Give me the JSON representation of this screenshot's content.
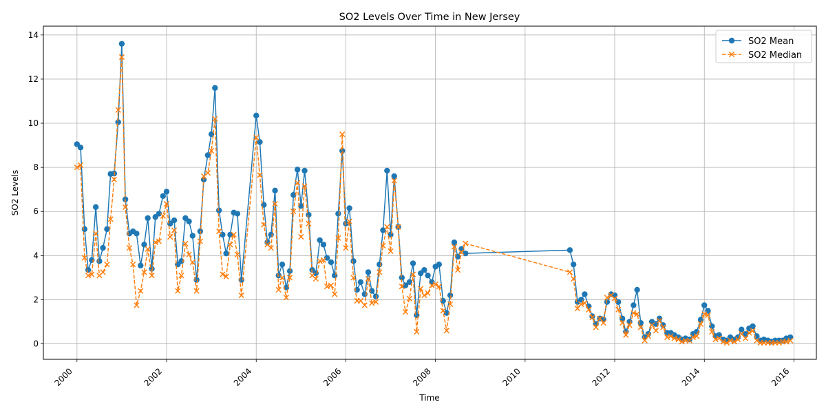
{
  "chart_data": {
    "type": "line",
    "title": "SO2 Levels Over Time in New Jersey",
    "xlabel": "Time",
    "ylabel": "SO2 Levels",
    "xlim": [
      1999.25,
      2016.5
    ],
    "ylim": [
      -0.7,
      14.4
    ],
    "xticks": [
      {
        "value": 2000,
        "label": "2000"
      },
      {
        "value": 2002,
        "label": "2002"
      },
      {
        "value": 2004,
        "label": "2004"
      },
      {
        "value": 2006,
        "label": "2006"
      },
      {
        "value": 2008,
        "label": "2008"
      },
      {
        "value": 2010,
        "label": "2010"
      },
      {
        "value": 2012,
        "label": "2012"
      },
      {
        "value": 2014,
        "label": "2014"
      },
      {
        "value": 2016,
        "label": "2016"
      }
    ],
    "yticks": [
      {
        "value": 0,
        "label": "0"
      },
      {
        "value": 2,
        "label": "2"
      },
      {
        "value": 4,
        "label": "4"
      },
      {
        "value": 6,
        "label": "6"
      },
      {
        "value": 8,
        "label": "8"
      },
      {
        "value": 10,
        "label": "10"
      },
      {
        "value": 12,
        "label": "12"
      },
      {
        "value": 14,
        "label": "14"
      }
    ],
    "grid": true,
    "legend_position": "top-right",
    "x": [
      2000.0,
      2000.08,
      2000.17,
      2000.25,
      2000.33,
      2000.42,
      2000.5,
      2000.58,
      2000.67,
      2000.75,
      2000.83,
      2000.92,
      2001.0,
      2001.08,
      2001.17,
      2001.25,
      2001.33,
      2001.42,
      2001.5,
      2001.58,
      2001.67,
      2001.75,
      2001.83,
      2001.92,
      2002.0,
      2002.08,
      2002.17,
      2002.25,
      2002.33,
      2002.42,
      2002.5,
      2002.58,
      2002.67,
      2002.75,
      2002.83,
      2002.92,
      2003.0,
      2003.08,
      2003.17,
      2003.25,
      2003.33,
      2003.42,
      2003.5,
      2003.58,
      2003.67,
      2004.0,
      2004.08,
      2004.17,
      2004.25,
      2004.33,
      2004.42,
      2004.5,
      2004.58,
      2004.67,
      2004.75,
      2004.83,
      2004.92,
      2005.0,
      2005.08,
      2005.17,
      2005.25,
      2005.33,
      2005.42,
      2005.5,
      2005.58,
      2005.67,
      2005.75,
      2005.83,
      2005.92,
      2006.0,
      2006.08,
      2006.17,
      2006.25,
      2006.33,
      2006.42,
      2006.5,
      2006.58,
      2006.67,
      2006.75,
      2006.83,
      2006.92,
      2007.0,
      2007.08,
      2007.17,
      2007.25,
      2007.33,
      2007.42,
      2007.5,
      2007.58,
      2007.67,
      2007.75,
      2007.83,
      2007.92,
      2008.0,
      2008.08,
      2008.17,
      2008.25,
      2008.33,
      2008.42,
      2008.5,
      2008.58,
      2008.67,
      2011.0,
      2011.08,
      2011.17,
      2011.25,
      2011.33,
      2011.42,
      2011.5,
      2011.58,
      2011.67,
      2011.75,
      2011.83,
      2011.92,
      2012.0,
      2012.08,
      2012.17,
      2012.25,
      2012.33,
      2012.42,
      2012.5,
      2012.58,
      2012.67,
      2012.75,
      2012.83,
      2012.92,
      2013.0,
      2013.08,
      2013.17,
      2013.25,
      2013.33,
      2013.42,
      2013.5,
      2013.58,
      2013.67,
      2013.75,
      2013.83,
      2013.92,
      2014.0,
      2014.08,
      2014.17,
      2014.25,
      2014.33,
      2014.42,
      2014.5,
      2014.58,
      2014.67,
      2014.75,
      2014.83,
      2014.92,
      2015.0,
      2015.08,
      2015.17,
      2015.25,
      2015.33,
      2015.42,
      2015.5,
      2015.58,
      2015.67,
      2015.75,
      2015.83,
      2015.92
    ],
    "series": [
      {
        "name": "SO2 Mean",
        "color": "#1f77b4",
        "marker": "circle",
        "linestyle": "solid",
        "values": [
          9.05,
          8.9,
          5.2,
          3.35,
          3.8,
          6.2,
          3.75,
          4.35,
          5.2,
          7.7,
          7.72,
          10.05,
          13.6,
          6.55,
          5.0,
          5.1,
          5.0,
          3.55,
          4.5,
          5.7,
          3.4,
          5.75,
          5.9,
          6.7,
          6.9,
          5.45,
          5.6,
          3.6,
          3.75,
          5.7,
          5.55,
          4.9,
          2.9,
          5.1,
          7.45,
          8.55,
          9.5,
          11.6,
          6.05,
          4.95,
          4.1,
          4.95,
          5.95,
          5.9,
          2.9,
          10.35,
          9.15,
          6.3,
          4.6,
          4.95,
          6.95,
          3.1,
          3.6,
          2.55,
          3.3,
          6.75,
          7.9,
          6.25,
          7.85,
          5.85,
          3.35,
          3.2,
          4.7,
          4.5,
          3.9,
          3.7,
          3.1,
          5.9,
          8.75,
          5.45,
          6.15,
          3.75,
          2.45,
          2.8,
          2.25,
          3.25,
          2.4,
          2.15,
          3.6,
          5.15,
          7.85,
          4.95,
          7.6,
          5.3,
          3.0,
          2.65,
          2.8,
          3.65,
          1.3,
          3.2,
          3.35,
          3.1,
          2.8,
          3.5,
          3.6,
          1.95,
          1.4,
          2.2,
          4.6,
          3.95,
          4.3,
          4.1,
          4.25,
          3.6,
          1.9,
          2.0,
          2.25,
          1.7,
          1.25,
          0.9,
          1.15,
          1.1,
          1.9,
          2.25,
          2.2,
          1.9,
          1.15,
          0.55,
          1.0,
          1.75,
          2.45,
          0.95,
          0.3,
          0.45,
          1.0,
          0.9,
          1.15,
          0.85,
          0.5,
          0.5,
          0.4,
          0.3,
          0.2,
          0.25,
          0.2,
          0.45,
          0.55,
          1.1,
          1.75,
          1.5,
          0.8,
          0.35,
          0.4,
          0.2,
          0.15,
          0.3,
          0.2,
          0.3,
          0.65,
          0.45,
          0.7,
          0.8,
          0.35,
          0.15,
          0.2,
          0.15,
          0.1,
          0.15,
          0.15,
          0.15,
          0.25,
          0.3
        ]
      },
      {
        "name": "SO2 Median",
        "color": "#ff7f0e",
        "marker": "x",
        "linestyle": "dashed",
        "values": [
          8.0,
          8.1,
          3.9,
          3.1,
          3.15,
          5.0,
          3.1,
          3.25,
          3.6,
          5.65,
          7.45,
          10.6,
          13.0,
          6.2,
          4.35,
          3.6,
          1.75,
          2.4,
          3.25,
          4.3,
          3.1,
          4.6,
          4.65,
          5.8,
          6.35,
          4.85,
          5.15,
          2.4,
          3.1,
          4.55,
          4.05,
          3.7,
          2.4,
          4.65,
          7.6,
          7.75,
          8.75,
          10.2,
          5.1,
          3.15,
          3.05,
          4.5,
          4.95,
          4.05,
          2.2,
          9.35,
          7.65,
          5.4,
          4.5,
          4.35,
          6.35,
          2.45,
          3.0,
          2.1,
          3.0,
          6.0,
          7.3,
          4.85,
          7.15,
          5.45,
          3.1,
          2.95,
          3.75,
          3.8,
          2.6,
          2.65,
          2.25,
          4.8,
          9.5,
          4.35,
          5.55,
          3.0,
          1.95,
          1.95,
          1.75,
          2.95,
          1.85,
          1.9,
          3.25,
          4.45,
          5.3,
          4.2,
          7.4,
          5.3,
          2.6,
          1.45,
          2.05,
          3.15,
          0.55,
          2.5,
          2.2,
          2.3,
          2.65,
          2.7,
          2.6,
          1.5,
          0.6,
          1.8,
          4.4,
          3.35,
          4.15,
          4.55,
          3.25,
          2.95,
          1.6,
          1.8,
          1.85,
          1.55,
          1.2,
          0.75,
          1.15,
          0.95,
          2.1,
          2.2,
          2.05,
          1.55,
          0.95,
          0.4,
          0.85,
          1.4,
          1.35,
          0.75,
          0.15,
          0.35,
          0.85,
          0.6,
          1.05,
          0.75,
          0.3,
          0.35,
          0.25,
          0.2,
          0.1,
          0.15,
          0.15,
          0.3,
          0.35,
          0.9,
          1.35,
          1.3,
          0.55,
          0.2,
          0.25,
          0.1,
          0.05,
          0.15,
          0.1,
          0.2,
          0.45,
          0.25,
          0.5,
          0.6,
          0.15,
          0.05,
          0.05,
          0.05,
          0.05,
          0.05,
          0.05,
          0.1,
          0.1,
          0.15
        ]
      }
    ]
  }
}
